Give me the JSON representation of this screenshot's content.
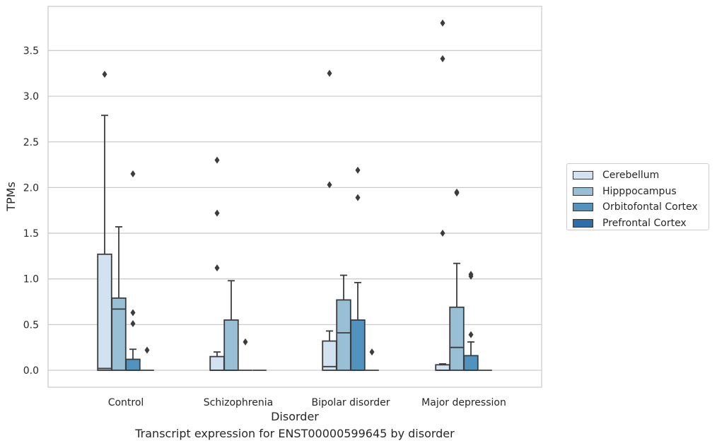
{
  "caption": "Transcript expression for ENST00000599645 by disorder",
  "chart_data": {
    "type": "box",
    "xlabel": "Disorder",
    "ylabel": "TPMs",
    "ylim": [
      -0.18,
      3.98
    ],
    "yticks": [
      0.0,
      0.5,
      1.0,
      1.5,
      2.0,
      2.5,
      3.0,
      3.5
    ],
    "ytick_labels": [
      "0.0",
      "0.5",
      "1.0",
      "1.5",
      "2.0",
      "2.5",
      "3.0",
      "3.5"
    ],
    "grid": "horizontal",
    "legend_position": "right",
    "categories": [
      "Control",
      "Schizophrenia",
      "Bipolar disorder",
      "Major depression"
    ],
    "series": [
      {
        "name": "Cerebellum",
        "color": "#d2e2f0",
        "boxes": [
          {
            "q1": 0.0,
            "median": 0.02,
            "q3": 1.27,
            "whisker_low": 0.0,
            "whisker_high": 2.79,
            "outliers": [
              3.24
            ]
          },
          {
            "q1": 0.0,
            "median": 0.0,
            "q3": 0.15,
            "whisker_low": 0.0,
            "whisker_high": 0.2,
            "outliers": [
              1.12,
              1.72,
              2.3
            ]
          },
          {
            "q1": 0.0,
            "median": 0.04,
            "q3": 0.32,
            "whisker_low": 0.0,
            "whisker_high": 0.43,
            "outliers": [
              2.03,
              3.25
            ]
          },
          {
            "q1": 0.0,
            "median": 0.0,
            "q3": 0.06,
            "whisker_low": 0.0,
            "whisker_high": 0.07,
            "outliers": [
              1.5,
              3.41,
              3.8
            ]
          }
        ]
      },
      {
        "name": "Hipppocampus",
        "color": "#98bfd6",
        "boxes": [
          {
            "q1": 0.0,
            "median": 0.67,
            "q3": 0.79,
            "whisker_low": 0.0,
            "whisker_high": 1.57,
            "outliers": []
          },
          {
            "q1": 0.0,
            "median": 0.0,
            "q3": 0.55,
            "whisker_low": 0.0,
            "whisker_high": 0.98,
            "outliers": []
          },
          {
            "q1": 0.0,
            "median": 0.41,
            "q3": 0.77,
            "whisker_low": 0.0,
            "whisker_high": 1.04,
            "outliers": []
          },
          {
            "q1": 0.0,
            "median": 0.25,
            "q3": 0.69,
            "whisker_low": 0.0,
            "whisker_high": 1.17,
            "outliers": [
              1.94,
              1.95
            ]
          }
        ]
      },
      {
        "name": "Orbitofontal Cortex",
        "color": "#5093be",
        "boxes": [
          {
            "q1": 0.0,
            "median": 0.0,
            "q3": 0.12,
            "whisker_low": 0.0,
            "whisker_high": 0.23,
            "outliers": [
              0.51,
              0.63,
              2.15
            ]
          },
          {
            "q1": 0.0,
            "median": 0.0,
            "q3": 0.0,
            "whisker_low": 0.0,
            "whisker_high": 0.0,
            "outliers": [
              0.31
            ]
          },
          {
            "q1": 0.0,
            "median": 0.0,
            "q3": 0.55,
            "whisker_low": 0.0,
            "whisker_high": 0.96,
            "outliers": [
              1.89,
              2.19
            ]
          },
          {
            "q1": 0.0,
            "median": 0.0,
            "q3": 0.16,
            "whisker_low": 0.0,
            "whisker_high": 0.31,
            "outliers": [
              0.39,
              1.03,
              1.05
            ]
          }
        ]
      },
      {
        "name": "Prefrontal Cortex",
        "color": "#2d6ea8",
        "boxes": [
          {
            "q1": 0.0,
            "median": 0.0,
            "q3": 0.0,
            "whisker_low": 0.0,
            "whisker_high": 0.0,
            "outliers": [
              0.22
            ]
          },
          {
            "q1": 0.0,
            "median": 0.0,
            "q3": 0.0,
            "whisker_low": 0.0,
            "whisker_high": 0.0,
            "outliers": []
          },
          {
            "q1": 0.0,
            "median": 0.0,
            "q3": 0.0,
            "whisker_low": 0.0,
            "whisker_high": 0.0,
            "outliers": [
              0.2
            ]
          },
          {
            "q1": 0.0,
            "median": 0.0,
            "q3": 0.0,
            "whisker_low": 0.0,
            "whisker_high": 0.0,
            "outliers": []
          }
        ]
      }
    ]
  }
}
